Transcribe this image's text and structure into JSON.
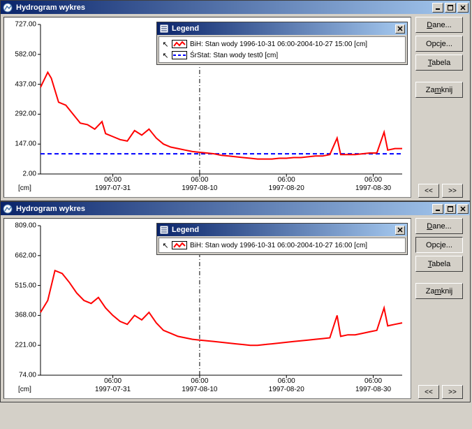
{
  "windows": [
    {
      "title": "Hydrogram wykres",
      "active": true,
      "chart": {
        "type": "line",
        "background_color": "#ffffff",
        "axis_color": "#000000",
        "line_color": "#ff0000",
        "line_width": 2,
        "ref_line_color": "#0000ff",
        "ref_line_dash": "6,4",
        "ref_line_value": 100,
        "time_cursor_x": 0.44,
        "ylim": [
          2,
          727
        ],
        "yticks": [
          727.0,
          582.0,
          437.0,
          292.0,
          147.0,
          2.0
        ],
        "unit_label": "[cm]",
        "xticks_top": [
          "06:00",
          "06:00",
          "06:00",
          "06:00"
        ],
        "xticks_bottom": [
          "1997-07-31",
          "1997-08-10",
          "1997-08-20",
          "1997-08-30"
        ],
        "xtick_rel": [
          0.2,
          0.44,
          0.68,
          0.92
        ],
        "series": [
          [
            0.0,
            0.58
          ],
          [
            0.02,
            0.68
          ],
          [
            0.03,
            0.64
          ],
          [
            0.05,
            0.48
          ],
          [
            0.07,
            0.46
          ],
          [
            0.09,
            0.4
          ],
          [
            0.11,
            0.34
          ],
          [
            0.13,
            0.33
          ],
          [
            0.15,
            0.3
          ],
          [
            0.17,
            0.35
          ],
          [
            0.18,
            0.27
          ],
          [
            0.2,
            0.25
          ],
          [
            0.22,
            0.23
          ],
          [
            0.24,
            0.22
          ],
          [
            0.26,
            0.29
          ],
          [
            0.28,
            0.26
          ],
          [
            0.3,
            0.3
          ],
          [
            0.32,
            0.24
          ],
          [
            0.34,
            0.2
          ],
          [
            0.36,
            0.18
          ],
          [
            0.38,
            0.17
          ],
          [
            0.4,
            0.16
          ],
          [
            0.42,
            0.15
          ],
          [
            0.44,
            0.145
          ],
          [
            0.46,
            0.14
          ],
          [
            0.48,
            0.135
          ],
          [
            0.5,
            0.125
          ],
          [
            0.52,
            0.12
          ],
          [
            0.54,
            0.115
          ],
          [
            0.56,
            0.11
          ],
          [
            0.58,
            0.105
          ],
          [
            0.6,
            0.1
          ],
          [
            0.62,
            0.1
          ],
          [
            0.64,
            0.1
          ],
          [
            0.66,
            0.105
          ],
          [
            0.68,
            0.105
          ],
          [
            0.7,
            0.11
          ],
          [
            0.72,
            0.11
          ],
          [
            0.74,
            0.115
          ],
          [
            0.76,
            0.12
          ],
          [
            0.78,
            0.12
          ],
          [
            0.8,
            0.13
          ],
          [
            0.82,
            0.24
          ],
          [
            0.83,
            0.13
          ],
          [
            0.85,
            0.13
          ],
          [
            0.87,
            0.13
          ],
          [
            0.89,
            0.135
          ],
          [
            0.91,
            0.14
          ],
          [
            0.93,
            0.14
          ],
          [
            0.95,
            0.28
          ],
          [
            0.96,
            0.16
          ],
          [
            0.98,
            0.17
          ],
          [
            1.0,
            0.17
          ]
        ]
      },
      "legend": {
        "title": "Legend",
        "items": [
          {
            "sample_type": "line",
            "sample_color": "#ff0000",
            "label": "BiH: Stan wody 1996-10-31 06:00-2004-10-27 15:00 [cm]"
          },
          {
            "sample_type": "dash",
            "sample_color": "#0000ff",
            "label": "ŚrStat: Stan wody test0 [cm]"
          }
        ]
      },
      "buttons": {
        "dane": "Dane...",
        "opcje": "Opcje...",
        "tabela": "Tabela",
        "zamknij": "Zamknij",
        "opcje_selected": false
      }
    },
    {
      "title": "Hydrogram wykres",
      "active": true,
      "chart": {
        "type": "line",
        "background_color": "#ffffff",
        "axis_color": "#000000",
        "line_color": "#ff0000",
        "line_width": 2,
        "time_cursor_x": 0.44,
        "ylim": [
          74,
          809
        ],
        "yticks": [
          809.0,
          662.0,
          515.0,
          368.0,
          221.0,
          74.0
        ],
        "unit_label": "[cm]",
        "xticks_top": [
          "06:00",
          "06:00",
          "06:00",
          "06:00"
        ],
        "xticks_bottom": [
          "1997-07-31",
          "1997-08-10",
          "1997-08-20",
          "1997-08-30"
        ],
        "xtick_rel": [
          0.2,
          0.44,
          0.68,
          0.92
        ],
        "series": [
          [
            0.0,
            0.42
          ],
          [
            0.02,
            0.5
          ],
          [
            0.04,
            0.7
          ],
          [
            0.06,
            0.68
          ],
          [
            0.08,
            0.62
          ],
          [
            0.1,
            0.55
          ],
          [
            0.12,
            0.5
          ],
          [
            0.14,
            0.48
          ],
          [
            0.16,
            0.52
          ],
          [
            0.18,
            0.45
          ],
          [
            0.2,
            0.4
          ],
          [
            0.22,
            0.36
          ],
          [
            0.24,
            0.34
          ],
          [
            0.26,
            0.4
          ],
          [
            0.28,
            0.37
          ],
          [
            0.3,
            0.42
          ],
          [
            0.32,
            0.35
          ],
          [
            0.34,
            0.3
          ],
          [
            0.36,
            0.28
          ],
          [
            0.38,
            0.26
          ],
          [
            0.4,
            0.25
          ],
          [
            0.42,
            0.24
          ],
          [
            0.44,
            0.235
          ],
          [
            0.46,
            0.23
          ],
          [
            0.48,
            0.225
          ],
          [
            0.5,
            0.22
          ],
          [
            0.52,
            0.215
          ],
          [
            0.54,
            0.21
          ],
          [
            0.56,
            0.205
          ],
          [
            0.58,
            0.2
          ],
          [
            0.6,
            0.2
          ],
          [
            0.62,
            0.205
          ],
          [
            0.64,
            0.21
          ],
          [
            0.66,
            0.215
          ],
          [
            0.68,
            0.22
          ],
          [
            0.7,
            0.225
          ],
          [
            0.72,
            0.23
          ],
          [
            0.74,
            0.235
          ],
          [
            0.76,
            0.24
          ],
          [
            0.78,
            0.245
          ],
          [
            0.8,
            0.25
          ],
          [
            0.82,
            0.4
          ],
          [
            0.83,
            0.26
          ],
          [
            0.85,
            0.27
          ],
          [
            0.87,
            0.27
          ],
          [
            0.89,
            0.28
          ],
          [
            0.91,
            0.29
          ],
          [
            0.93,
            0.3
          ],
          [
            0.95,
            0.45
          ],
          [
            0.96,
            0.33
          ],
          [
            0.98,
            0.34
          ],
          [
            1.0,
            0.35
          ]
        ]
      },
      "legend": {
        "title": "Legend",
        "items": [
          {
            "sample_type": "line",
            "sample_color": "#ff0000",
            "label": "BiH: Stan wody 1996-10-31 06:00-2004-10-27 16:00 [cm]"
          }
        ]
      },
      "buttons": {
        "dane": "Dane...",
        "opcje": "Opcje...",
        "tabela": "Tabela",
        "zamknij": "Zamknij",
        "opcje_selected": true
      }
    }
  ],
  "nav": {
    "prev": "<<",
    "next": ">>"
  },
  "win_controls": {
    "min": "_",
    "max": "□",
    "close": "×"
  }
}
